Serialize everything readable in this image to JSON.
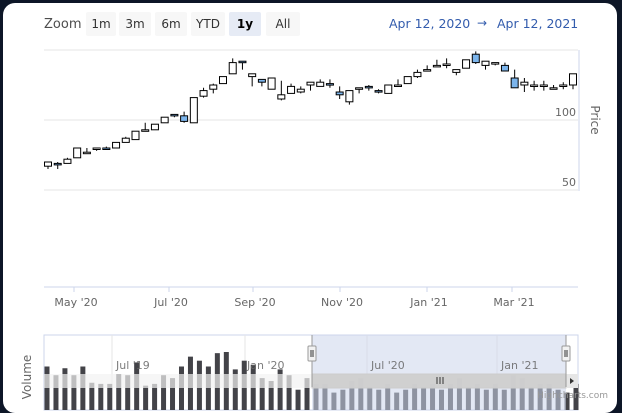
{
  "range_selector": {
    "zoom_label": "Zoom",
    "buttons": [
      {
        "label": "1m",
        "active": false
      },
      {
        "label": "3m",
        "active": false
      },
      {
        "label": "6m",
        "active": false
      },
      {
        "label": "YTD",
        "active": false
      },
      {
        "label": "1y",
        "active": true
      },
      {
        "label": "All",
        "active": false
      }
    ],
    "from_date": "Apr 12, 2020",
    "arrow": "→",
    "to_date": "Apr 12, 2021"
  },
  "colors": {
    "up_fill": "#ffffff",
    "down_fill": "#7cb5ec",
    "candle_line": "#000000",
    "gridline": "#e6e6e6",
    "axis_line": "#ccd6eb",
    "navigator_mask": "#ccd6eb",
    "volume_bar": "#434348",
    "background": "#0d1627",
    "range_text": "#335cad"
  },
  "chart_data": {
    "type": "candlestick",
    "title": "",
    "xlabel": "",
    "ylabel": "Price",
    "y_ticks": [
      50,
      100
    ],
    "ylim": [
      0,
      150
    ],
    "x_ticks": [
      "May '20",
      "Jul '20",
      "Sep '20",
      "Nov '20",
      "Jan '21",
      "Mar '21"
    ],
    "grid": true,
    "legend": "none",
    "series": [
      {
        "name": "Price",
        "type": "candlestick",
        "interval": "weekly",
        "ohlc": [
          [
            67,
            70,
            65,
            70
          ],
          [
            69,
            70,
            65,
            68
          ],
          [
            69,
            73,
            69,
            72
          ],
          [
            73,
            80,
            73,
            80
          ],
          [
            76,
            80,
            76,
            77
          ],
          [
            79,
            80,
            78,
            80
          ],
          [
            80,
            81,
            79,
            79
          ],
          [
            80,
            84,
            80,
            84
          ],
          [
            84,
            88,
            84,
            87
          ],
          [
            86,
            90,
            86,
            92
          ],
          [
            92,
            98,
            92,
            93
          ],
          [
            93,
            97,
            93,
            97
          ],
          [
            98,
            102,
            98,
            102
          ],
          [
            104,
            104,
            102,
            103
          ],
          [
            103,
            106,
            98,
            99
          ],
          [
            98,
            101,
            98,
            116
          ],
          [
            117,
            123,
            116,
            121
          ],
          [
            122,
            126,
            119,
            125
          ],
          [
            126,
            126,
            126,
            131
          ],
          [
            133,
            144,
            133,
            141
          ],
          [
            142,
            138,
            136,
            141
          ],
          [
            131,
            128,
            124,
            133
          ],
          [
            129,
            126,
            124,
            127
          ],
          [
            122,
            129,
            122,
            130
          ],
          [
            115,
            128,
            114,
            118
          ],
          [
            119,
            126,
            119,
            124
          ],
          [
            120,
            124,
            119,
            122
          ],
          [
            125,
            125,
            121,
            127
          ],
          [
            124,
            129,
            124,
            127
          ],
          [
            126,
            129,
            123,
            125
          ],
          [
            120,
            124,
            115,
            118
          ],
          [
            113,
            121,
            111,
            121
          ],
          [
            122,
            123,
            119,
            123
          ],
          [
            124,
            125,
            121,
            123
          ],
          [
            121,
            122,
            119,
            120
          ],
          [
            119,
            123,
            119,
            125
          ],
          [
            124,
            129,
            124,
            125
          ],
          [
            126,
            130,
            126,
            131
          ],
          [
            131,
            136,
            130,
            134
          ],
          [
            136,
            139,
            135,
            136
          ],
          [
            138,
            143,
            138,
            139
          ],
          [
            139,
            144,
            137,
            140
          ],
          [
            134,
            136,
            132,
            136
          ],
          [
            137,
            142,
            137,
            143
          ],
          [
            147,
            149,
            140,
            141
          ],
          [
            139,
            141,
            136,
            142
          ],
          [
            140,
            140,
            139,
            141
          ],
          [
            139,
            141,
            135,
            135
          ],
          [
            130,
            136,
            130,
            123
          ],
          [
            125,
            130,
            120,
            127
          ],
          [
            124,
            128,
            121,
            125
          ],
          [
            124,
            128,
            121,
            125
          ],
          [
            123,
            125,
            122,
            123
          ],
          [
            124,
            127,
            122,
            125
          ],
          [
            125,
            128,
            122,
            133
          ]
        ]
      }
    ],
    "navigator": {
      "x_ticks": [
        "Jul '19",
        "Jan '20",
        "Jul '20",
        "Jan '21"
      ],
      "ylabel": "Volume",
      "volume_relative_heights": [
        0.75,
        0.6,
        0.72,
        0.6,
        0.75,
        0.47,
        0.45,
        0.45,
        0.62,
        0.6,
        0.82,
        0.42,
        0.45,
        0.6,
        0.55,
        0.75,
        0.92,
        0.85,
        0.75,
        0.98,
        1.0,
        0.7,
        0.85,
        0.78,
        0.55,
        0.5,
        0.7,
        0.6,
        0.35,
        0.55,
        0.45,
        0.45,
        0.3,
        0.35,
        0.5,
        0.55,
        0.4,
        0.35,
        0.45,
        0.3,
        0.35,
        0.45,
        0.4,
        0.45,
        0.35,
        0.45,
        0.55,
        0.4,
        0.45,
        0.35,
        0.45,
        0.35,
        0.6,
        0.55,
        0.4,
        0.45,
        0.45,
        0.35,
        0.3,
        0.45
      ],
      "selected_range": [
        "Apr 12, 2020",
        "Apr 12, 2021"
      ]
    }
  },
  "axes": {
    "price_title": "Price",
    "volume_title": "Volume"
  },
  "credits": "Highcharts.com"
}
